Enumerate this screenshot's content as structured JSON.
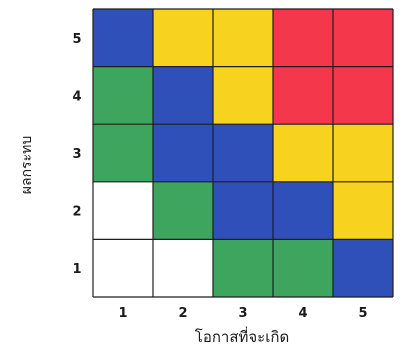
{
  "chart_data": {
    "type": "heatmap",
    "title": "",
    "xlabel": "โอกาสที่จะเกิด",
    "ylabel": "ผลกระทบ",
    "x_ticks": [
      "1",
      "2",
      "3",
      "4",
      "5"
    ],
    "y_ticks": [
      "1",
      "2",
      "3",
      "4",
      "5"
    ],
    "color_scale": {
      "white": "#ffffff",
      "green": "#3ea55f",
      "blue": "#2f50b8",
      "yellow": "#f7d21e",
      "red": "#f4374a"
    },
    "grid_rows_top_to_bottom": [
      {
        "impact": "5",
        "cells": [
          "blue",
          "yellow",
          "yellow",
          "red",
          "red"
        ]
      },
      {
        "impact": "4",
        "cells": [
          "green",
          "blue",
          "yellow",
          "red",
          "red"
        ]
      },
      {
        "impact": "3",
        "cells": [
          "green",
          "blue",
          "blue",
          "yellow",
          "yellow"
        ]
      },
      {
        "impact": "2",
        "cells": [
          "white",
          "green",
          "blue",
          "blue",
          "yellow"
        ]
      },
      {
        "impact": "1",
        "cells": [
          "white",
          "white",
          "green",
          "green",
          "blue"
        ]
      }
    ],
    "grid": true
  }
}
